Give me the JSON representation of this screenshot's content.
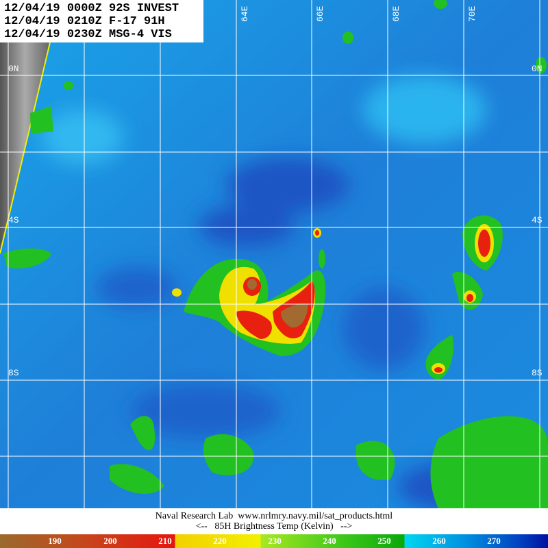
{
  "header": {
    "lines": [
      "12/04/19 0000Z 92S INVEST",
      "12/04/19 0210Z F-17 91H",
      "12/04/19 0230Z MSG-4 VIS"
    ]
  },
  "grid": {
    "lat_labels": [
      "0N",
      "4S",
      "8S"
    ],
    "lon_labels": [
      "64E",
      "66E",
      "68E",
      "70E"
    ]
  },
  "footer": {
    "credit": "Naval Research Lab  www.nrlmry.navy.mil/sat_products.html",
    "legend_title": "<--   85H Brightness Temp (Kelvin)   -->"
  },
  "colorbar": {
    "ticks": [
      "190",
      "200",
      "210",
      "220",
      "230",
      "240",
      "250",
      "260",
      "270"
    ],
    "colors": {
      "cold_brown": "#9a6a2c",
      "red": "#e6150f",
      "yellow": "#f2f000",
      "green": "#0aa80a",
      "cyan": "#00d6f0",
      "dark_blue": "#0010a0"
    }
  }
}
